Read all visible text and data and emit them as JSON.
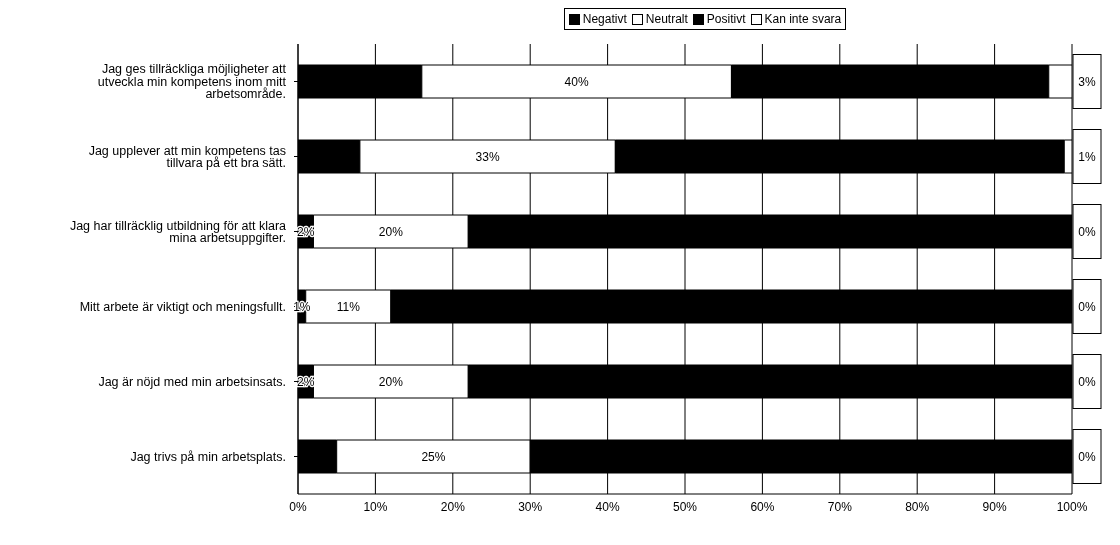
{
  "chart_data": {
    "type": "bar",
    "orientation": "horizontal",
    "stacked": true,
    "legend": "top",
    "grid": "x",
    "categories": [
      "Jag ges tillräckliga möjligheter att utveckla min kompetens inom mitt arbetsområde.",
      "Jag upplever att min kompetens tas tillvara på ett bra sätt.",
      "Jag har tillräcklig utbildning för att klara mina arbetsuppgifter.",
      "Mitt arbete är viktigt och meningsfullt.",
      "Jag är nöjd med min arbetsinsats.",
      "Jag trivs på min arbetsplats."
    ],
    "series": [
      {
        "name": "Negativt",
        "color": "#000000",
        "values": [
          16,
          8,
          2,
          1,
          2,
          5
        ],
        "value_labels": [
          null,
          null,
          "2%",
          "1%",
          "2%",
          null
        ]
      },
      {
        "name": "Neutralt",
        "color": "#ffffff",
        "values": [
          40,
          33,
          20,
          11,
          20,
          25
        ],
        "value_labels": [
          "40%",
          "33%",
          "20%",
          "11%",
          "20%",
          "25%"
        ]
      },
      {
        "name": "Positivt",
        "color": "#000000",
        "values": [
          41,
          58,
          78,
          88,
          78,
          70
        ]
      },
      {
        "name": "Kan inte svara",
        "color": "#ffffff",
        "values": [
          3,
          1,
          0,
          0,
          0,
          0
        ],
        "value_labels": [
          "3%",
          "1%",
          "0%",
          "0%",
          "0%",
          "0%"
        ]
      }
    ],
    "xlim": [
      0,
      100
    ],
    "xticks": [
      {
        "value": 0,
        "label": "0%"
      },
      {
        "value": 10,
        "label": "10%"
      },
      {
        "value": 20,
        "label": "20%"
      },
      {
        "value": 30,
        "label": "30%"
      },
      {
        "value": 40,
        "label": "40%"
      },
      {
        "value": 50,
        "label": "50%"
      },
      {
        "value": 60,
        "label": "60%"
      },
      {
        "value": 70,
        "label": "70%"
      },
      {
        "value": 80,
        "label": "80%"
      },
      {
        "value": 90,
        "label": "90%"
      },
      {
        "value": 100,
        "label": "100%"
      }
    ]
  }
}
